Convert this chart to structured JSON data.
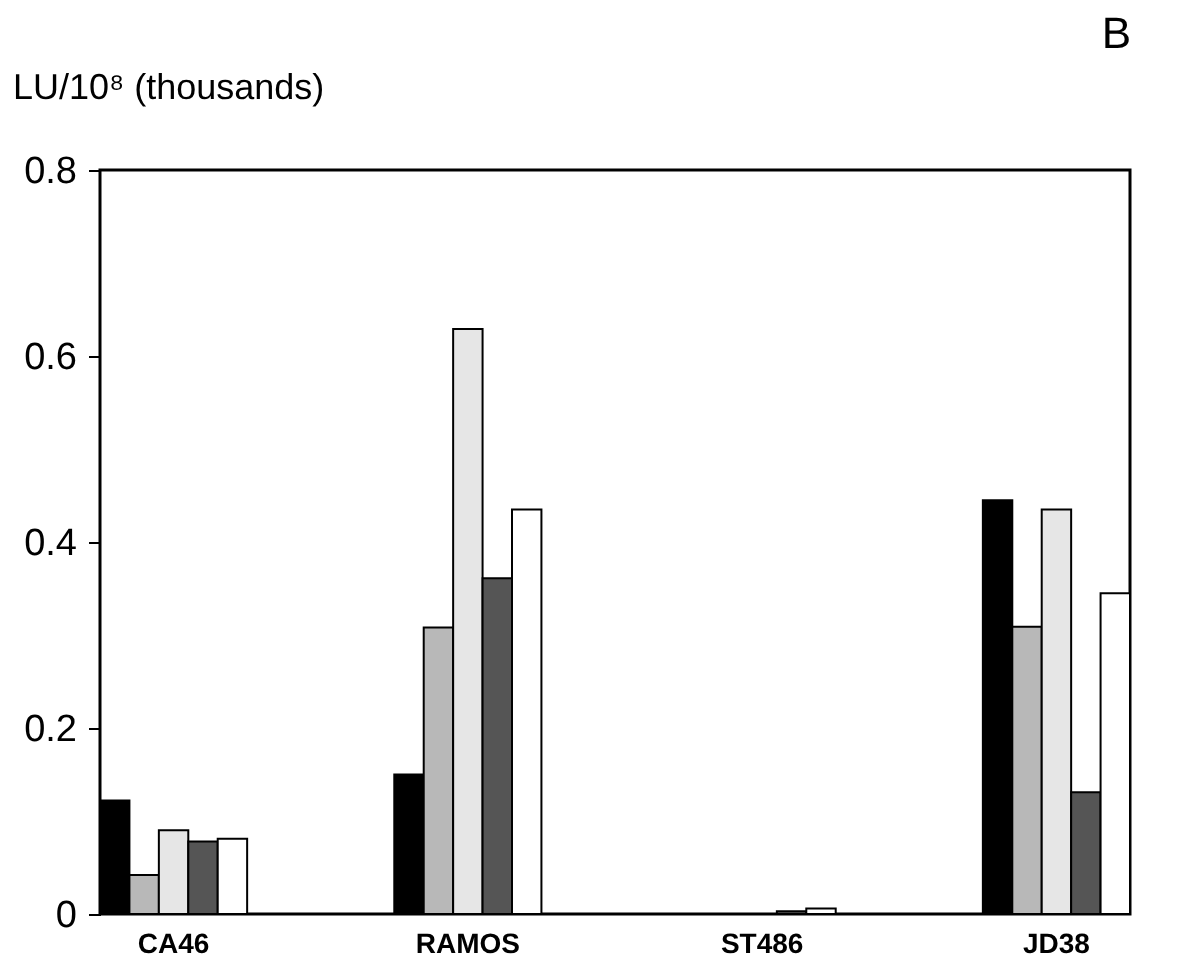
{
  "chart_data": {
    "type": "bar",
    "title": "B",
    "ylabel": "LU/10⁸ (thousands)",
    "categories": [
      "CA46",
      "RAMOS",
      "ST486",
      "JD38"
    ],
    "series": [
      {
        "color": "#000000",
        "values": [
          0.122,
          0.15,
          null,
          0.445
        ]
      },
      {
        "color": "#b8b8b8",
        "values": [
          0.042,
          0.308,
          null,
          0.309
        ]
      },
      {
        "color": "#e6e6e6",
        "values": [
          0.09,
          0.629,
          null,
          0.435
        ]
      },
      {
        "color": "#555555",
        "values": [
          0.078,
          0.361,
          0.003,
          0.131
        ]
      },
      {
        "color": "#ffffff",
        "values": [
          0.081,
          0.435,
          0.006,
          0.345
        ]
      }
    ],
    "ylim": [
      0,
      0.8
    ],
    "yticks": [
      {
        "value": 0,
        "label": "0"
      },
      0.2,
      0.4,
      0.6,
      0.8
    ],
    "grid": false,
    "legend": false
  }
}
